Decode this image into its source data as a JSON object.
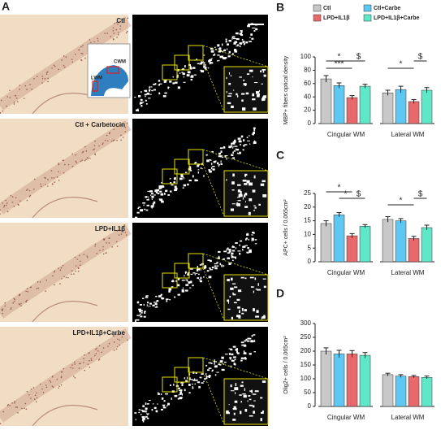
{
  "figure": {
    "panel": "A",
    "image_labels": [
      "Ctl",
      "Ctl + Carbetocin",
      "LPD+IL1β",
      "LPD+IL1β+Carbe"
    ],
    "inset_labels": [
      "CWM",
      "LWM"
    ]
  },
  "chart_data": [
    {
      "type": "bar",
      "panel": "B",
      "y_label": "MBP+ fibers optical density",
      "legend": "top",
      "categories": [
        "Cingular WM",
        "Lateral WM"
      ],
      "ylim": [
        0,
        100
      ],
      "yticks": [
        0,
        20,
        40,
        60,
        80,
        100
      ],
      "series": [
        {
          "name": "Ctl",
          "color": "#c8c8c8",
          "values": [
            67,
            46
          ],
          "errors": [
            5,
            4
          ]
        },
        {
          "name": "Ctl+Carbe",
          "color": "#5ec8f2",
          "values": [
            57,
            51
          ],
          "errors": [
            4,
            5
          ]
        },
        {
          "name": "LPD+IL1β",
          "color": "#e8696b",
          "values": [
            39,
            33
          ],
          "errors": [
            3,
            3
          ]
        },
        {
          "name": "LPD+IL1β+Carbe",
          "color": "#5ee8c8",
          "values": [
            56,
            50
          ],
          "errors": [
            3,
            4
          ]
        }
      ],
      "annotations": [
        "*",
        "***",
        "$",
        "*",
        "$"
      ]
    },
    {
      "type": "bar",
      "panel": "C",
      "y_label": "APC+ cells / 0.065cm²",
      "categories": [
        "Cingular WM",
        "Lateral WM"
      ],
      "ylim": [
        0,
        25
      ],
      "yticks": [
        0,
        5,
        10,
        15,
        20,
        25
      ],
      "series": [
        {
          "color": "#c8c8c8",
          "values": [
            14,
            15.5
          ],
          "errors": [
            1,
            1
          ]
        },
        {
          "color": "#5ec8f2",
          "values": [
            17.2,
            15
          ],
          "errors": [
            0.8,
            0.8
          ]
        },
        {
          "color": "#e8696b",
          "values": [
            9.5,
            8.5
          ],
          "errors": [
            0.8,
            0.8
          ]
        },
        {
          "color": "#5ee8c8",
          "values": [
            13,
            12.5
          ],
          "errors": [
            0.6,
            0.9
          ]
        }
      ],
      "annotations": [
        "*",
        "*",
        "$",
        "*",
        "$"
      ]
    },
    {
      "type": "bar",
      "panel": "D",
      "y_label": "Olig2+ cells / 0.065cm²",
      "categories": [
        "Cingular WM",
        "Lateral WM"
      ],
      "ylim": [
        0,
        300
      ],
      "yticks": [
        0,
        50,
        100,
        150,
        200,
        250,
        300
      ],
      "series": [
        {
          "color": "#c8c8c8",
          "values": [
            200,
            115
          ],
          "errors": [
            12,
            5
          ]
        },
        {
          "color": "#5ec8f2",
          "values": [
            190,
            110
          ],
          "errors": [
            13,
            5
          ]
        },
        {
          "color": "#e8696b",
          "values": [
            190,
            108
          ],
          "errors": [
            12,
            4
          ]
        },
        {
          "color": "#5ee8c8",
          "values": [
            185,
            105
          ],
          "errors": [
            10,
            5
          ]
        }
      ]
    }
  ]
}
